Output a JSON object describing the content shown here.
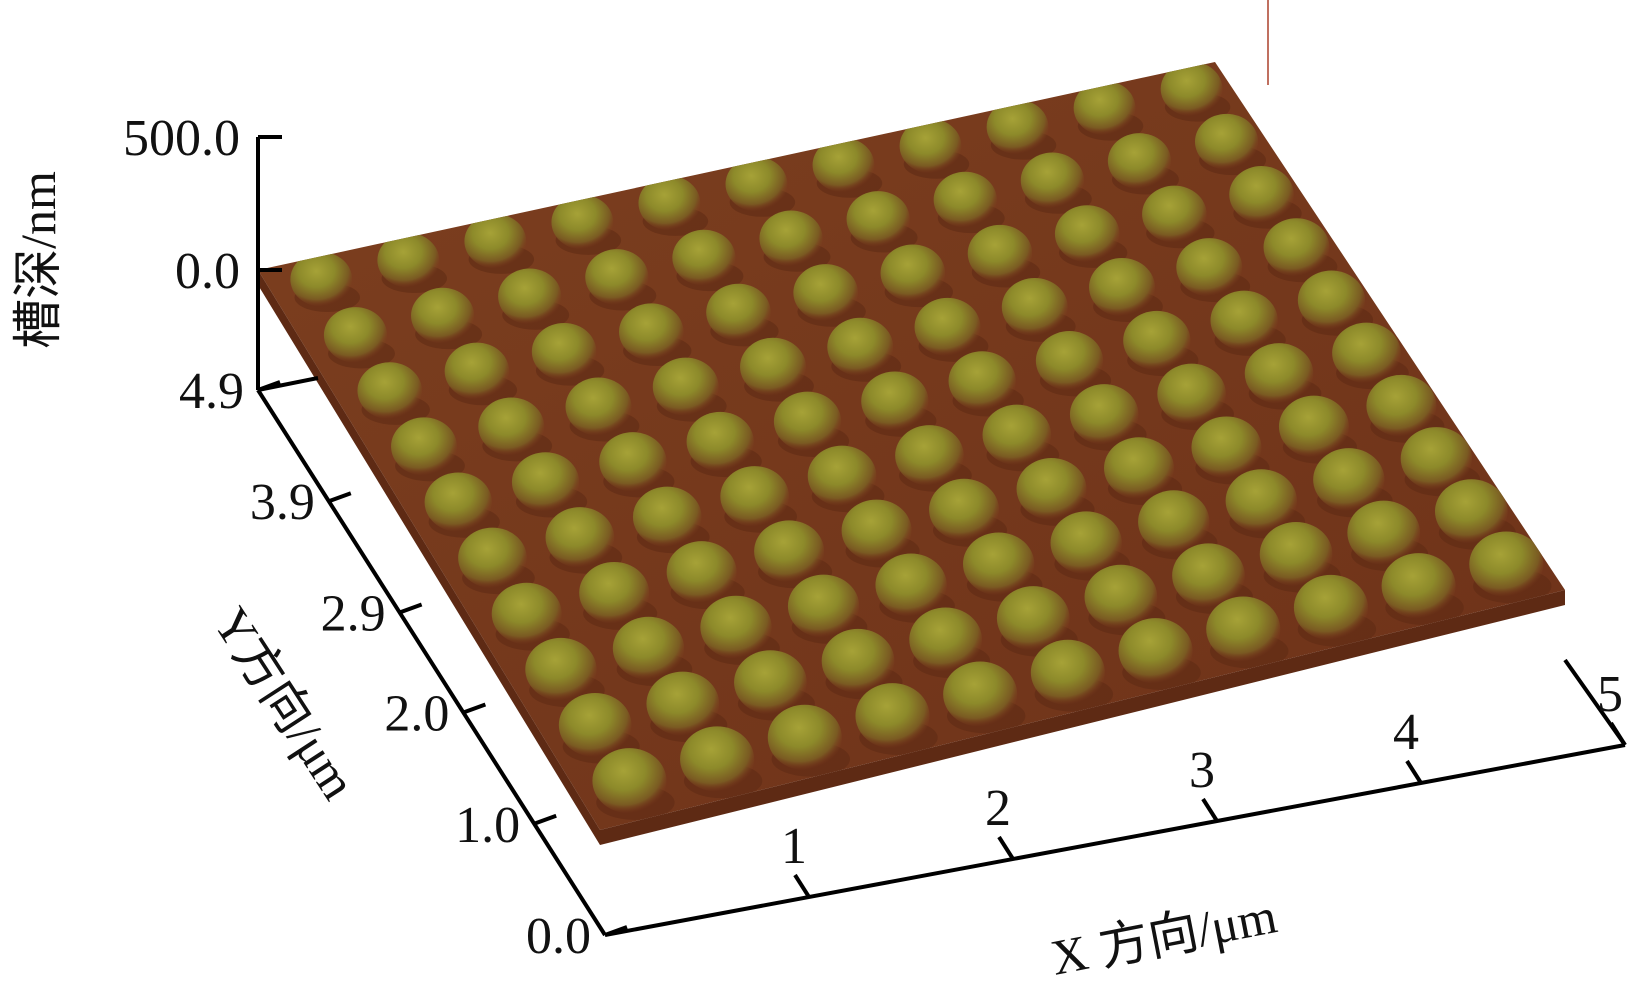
{
  "chart_data": {
    "type": "surface3d",
    "z_axis": {
      "label": "槽深/nm",
      "ticks": [
        "500.0",
        "0.0"
      ],
      "range": [
        0.0,
        500.0
      ]
    },
    "y_axis": {
      "label": "Y方向/μm",
      "ticks": [
        "4.9",
        "3.9",
        "2.9",
        "2.0",
        "1.0",
        "0.0"
      ],
      "range": [
        0.0,
        4.9
      ]
    },
    "x_axis": {
      "label": "X 方向/μm",
      "ticks": [
        "1",
        "2",
        "3",
        "4",
        "5"
      ],
      "range": [
        0,
        5
      ]
    },
    "surface": {
      "pattern": "periodic bump array (AFM topography)",
      "rows": 10,
      "cols": 11,
      "colors": {
        "base": "#7a3a1e",
        "peak": "#9a9a2e"
      }
    }
  }
}
